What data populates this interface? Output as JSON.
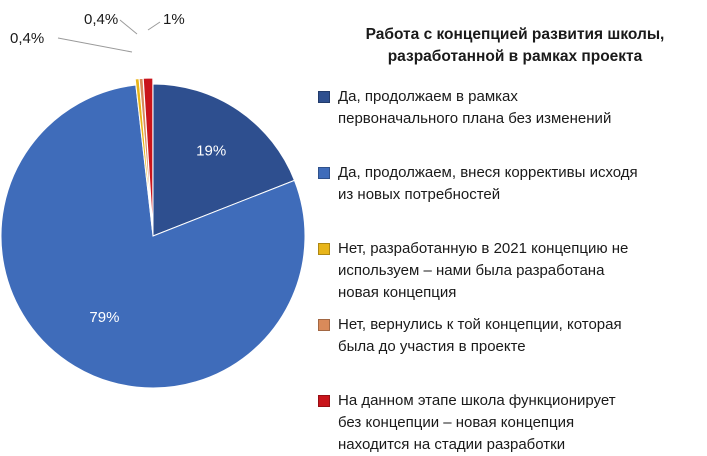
{
  "chart_data": {
    "type": "pie",
    "title_lines": [
      "Работа с концепцией развития школы,",
      "разработанной в рамках проекта"
    ],
    "slices": [
      {
        "label_lines": [
          "Да, продолжаем в рамках",
          "первоначального плана без изменений"
        ],
        "value": 19,
        "display": "19%",
        "color": "#2e4f8f"
      },
      {
        "label_lines": [
          "Да, продолжаем, внеся коррективы исходя",
          "из новых потребностей"
        ],
        "value": 79,
        "display": "79%",
        "color": "#3f6cba"
      },
      {
        "label_lines": [
          "Нет, разработанную в 2021 концепцию не",
          "используем – нами была разработана",
          "новая концепция"
        ],
        "value": 0.4,
        "display": "0,4%",
        "color": "#e8b51a"
      },
      {
        "label_lines": [
          "Нет, вернулись к той концепции, которая",
          "была до участия в проекте"
        ],
        "value": 0.4,
        "display": "0,4%",
        "color": "#d98a5a"
      },
      {
        "label_lines": [
          "На данном этапе школа функционирует",
          "без концепции – новая концепция",
          "находится на стадии разработки"
        ],
        "value": 1,
        "display": "1%",
        "color": "#c9141b"
      }
    ],
    "legend_position": "right"
  }
}
